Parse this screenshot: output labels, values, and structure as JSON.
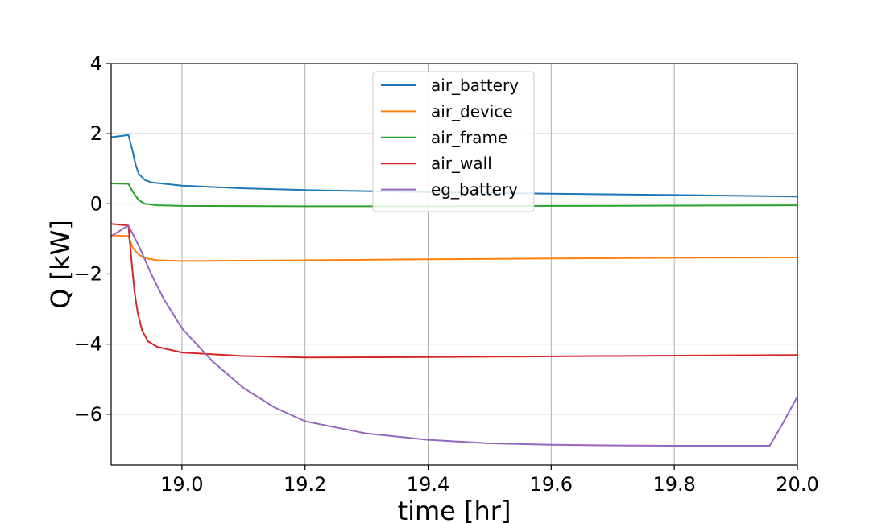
{
  "chart_data": {
    "type": "line",
    "title": "",
    "xlabel": "time [hr]",
    "ylabel": "Q [kW]",
    "xlim": [
      18.885,
      20.0
    ],
    "ylim": [
      -7.45,
      4.0
    ],
    "xticks": [
      19.0,
      19.2,
      19.4,
      19.6,
      19.8,
      20.0
    ],
    "xtick_labels": [
      "19.0",
      "19.2",
      "19.4",
      "19.6",
      "19.8",
      "20.0"
    ],
    "yticks": [
      -6,
      -4,
      -2,
      0,
      2,
      4
    ],
    "ytick_labels": [
      "−6",
      "−4",
      "−2",
      "0",
      "2",
      "4"
    ],
    "grid": true,
    "legend_position": "upper-center",
    "series": [
      {
        "name": "air_battery",
        "color": "#1f77b4",
        "points": [
          [
            18.885,
            1.9
          ],
          [
            18.913,
            1.96
          ],
          [
            18.92,
            1.5
          ],
          [
            18.925,
            1.1
          ],
          [
            18.93,
            0.85
          ],
          [
            18.94,
            0.68
          ],
          [
            18.95,
            0.61
          ],
          [
            19.0,
            0.52
          ],
          [
            19.1,
            0.44
          ],
          [
            19.2,
            0.39
          ],
          [
            19.4,
            0.33
          ],
          [
            19.6,
            0.29
          ],
          [
            19.8,
            0.25
          ],
          [
            20.0,
            0.21
          ]
        ]
      },
      {
        "name": "air_device",
        "color": "#ff7f0e",
        "points": [
          [
            18.885,
            -0.9
          ],
          [
            18.913,
            -0.92
          ],
          [
            18.92,
            -1.25
          ],
          [
            18.93,
            -1.45
          ],
          [
            18.94,
            -1.55
          ],
          [
            18.96,
            -1.61
          ],
          [
            19.0,
            -1.63
          ],
          [
            19.2,
            -1.61
          ],
          [
            19.4,
            -1.58
          ],
          [
            19.6,
            -1.56
          ],
          [
            19.8,
            -1.54
          ],
          [
            20.0,
            -1.53
          ]
        ]
      },
      {
        "name": "air_frame",
        "color": "#2ca02c",
        "points": [
          [
            18.885,
            0.58
          ],
          [
            18.913,
            0.57
          ],
          [
            18.92,
            0.35
          ],
          [
            18.93,
            0.1
          ],
          [
            18.94,
            0.0
          ],
          [
            18.96,
            -0.04
          ],
          [
            19.0,
            -0.06
          ],
          [
            19.2,
            -0.07
          ],
          [
            19.4,
            -0.07
          ],
          [
            19.6,
            -0.06
          ],
          [
            19.8,
            -0.05
          ],
          [
            20.0,
            -0.04
          ]
        ]
      },
      {
        "name": "air_wall",
        "color": "#d62728",
        "points": [
          [
            18.885,
            -0.57
          ],
          [
            18.913,
            -0.62
          ],
          [
            18.918,
            -1.6
          ],
          [
            18.923,
            -2.5
          ],
          [
            18.928,
            -3.1
          ],
          [
            18.935,
            -3.6
          ],
          [
            18.945,
            -3.92
          ],
          [
            18.96,
            -4.08
          ],
          [
            19.0,
            -4.24
          ],
          [
            19.1,
            -4.34
          ],
          [
            19.2,
            -4.38
          ],
          [
            19.4,
            -4.37
          ],
          [
            19.6,
            -4.35
          ],
          [
            19.8,
            -4.33
          ],
          [
            20.0,
            -4.31
          ]
        ]
      },
      {
        "name": "eg_battery",
        "color": "#9467bd",
        "points": [
          [
            18.885,
            -0.92
          ],
          [
            18.913,
            -0.62
          ],
          [
            18.93,
            -1.2
          ],
          [
            18.95,
            -2.0
          ],
          [
            18.97,
            -2.7
          ],
          [
            19.0,
            -3.55
          ],
          [
            19.05,
            -4.5
          ],
          [
            19.1,
            -5.25
          ],
          [
            19.15,
            -5.8
          ],
          [
            19.2,
            -6.2
          ],
          [
            19.3,
            -6.55
          ],
          [
            19.4,
            -6.73
          ],
          [
            19.5,
            -6.83
          ],
          [
            19.6,
            -6.87
          ],
          [
            19.7,
            -6.89
          ],
          [
            19.8,
            -6.9
          ],
          [
            19.9,
            -6.9
          ],
          [
            19.955,
            -6.9
          ],
          [
            19.975,
            -6.3
          ],
          [
            20.0,
            -5.5
          ]
        ]
      }
    ]
  }
}
